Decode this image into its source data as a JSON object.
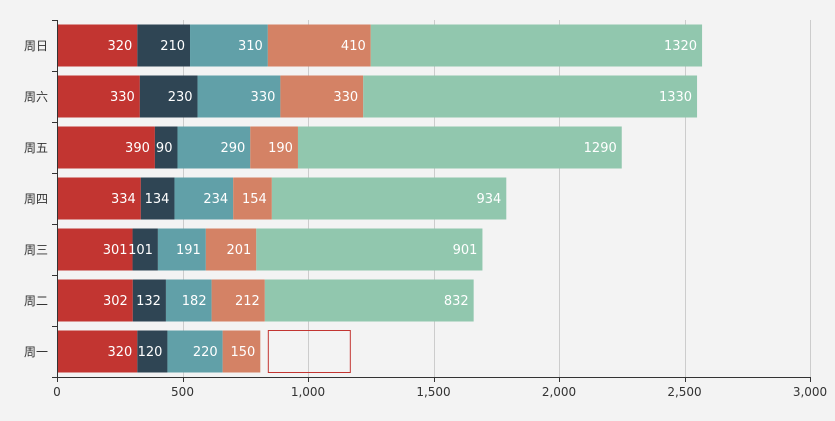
{
  "chart_data": {
    "type": "bar",
    "orientation": "horizontal",
    "stacked": true,
    "categories": [
      "周一",
      "周二",
      "周三",
      "周四",
      "周五",
      "周六",
      "周日"
    ],
    "series": [
      {
        "values": [
          320,
          302,
          301,
          334,
          390,
          330,
          320
        ],
        "color": "#c23531"
      },
      {
        "values": [
          120,
          132,
          101,
          134,
          90,
          230,
          210
        ],
        "color": "#2f4554"
      },
      {
        "values": [
          220,
          182,
          191,
          234,
          290,
          330,
          310
        ],
        "color": "#61a0a8"
      },
      {
        "values": [
          150,
          212,
          201,
          154,
          190,
          330,
          410
        ],
        "color": "#d48265"
      },
      {
        "values": [
          null,
          832,
          901,
          934,
          1290,
          1330,
          1320
        ],
        "color": "#91c7ae"
      }
    ],
    "xlim": [
      0,
      3000
    ],
    "xticks": [
      0,
      500,
      1000,
      1500,
      2000,
      2500,
      3000
    ],
    "xtick_labels": [
      "0",
      "500",
      "1,000",
      "1,500",
      "2,000",
      "2,500",
      "3,000"
    ],
    "grid": "vertical",
    "data_labels": "inside-right",
    "highlight_box_color": "#c23531"
  }
}
